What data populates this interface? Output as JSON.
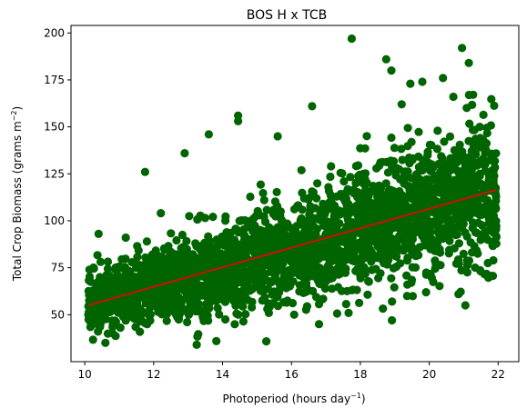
{
  "chart_data": {
    "type": "scatter",
    "title": "BOS H x TCB",
    "xlabel": "Photoperiod (hours day",
    "xlabel_sup": "−1",
    "xlabel_end": ")",
    "ylabel": "Total Crop Biomass (grams m",
    "ylabel_sup": "−2",
    "ylabel_end": ")",
    "xlim": [
      9.6,
      22.6
    ],
    "ylim": [
      25,
      204
    ],
    "x_ticks": [
      10,
      12,
      14,
      16,
      18,
      20,
      22
    ],
    "y_ticks": [
      50,
      75,
      100,
      125,
      150,
      175,
      200
    ],
    "grid": false,
    "colors": {
      "points": "#006400",
      "trend": "#cc1100"
    },
    "trend_line": {
      "x": [
        10.1,
        21.95
      ],
      "y": [
        55,
        116.5
      ]
    },
    "outliers": [
      {
        "x": 17.75,
        "y": 197
      },
      {
        "x": 20.95,
        "y": 192
      },
      {
        "x": 21.15,
        "y": 184
      },
      {
        "x": 18.75,
        "y": 186
      },
      {
        "x": 18.9,
        "y": 180
      },
      {
        "x": 19.45,
        "y": 173
      },
      {
        "x": 19.8,
        "y": 174
      },
      {
        "x": 20.4,
        "y": 176
      },
      {
        "x": 14.45,
        "y": 156
      },
      {
        "x": 14.45,
        "y": 153
      },
      {
        "x": 16.6,
        "y": 161
      },
      {
        "x": 13.6,
        "y": 146
      },
      {
        "x": 11.75,
        "y": 126
      },
      {
        "x": 12.9,
        "y": 136
      },
      {
        "x": 10.6,
        "y": 35
      },
      {
        "x": 13.25,
        "y": 34
      },
      {
        "x": 21.05,
        "y": 55
      },
      {
        "x": 16.8,
        "y": 45
      },
      {
        "x": 10.4,
        "y": 93
      },
      {
        "x": 19.2,
        "y": 162
      },
      {
        "x": 20.7,
        "y": 166
      },
      {
        "x": 15.6,
        "y": 145
      }
    ]
  }
}
